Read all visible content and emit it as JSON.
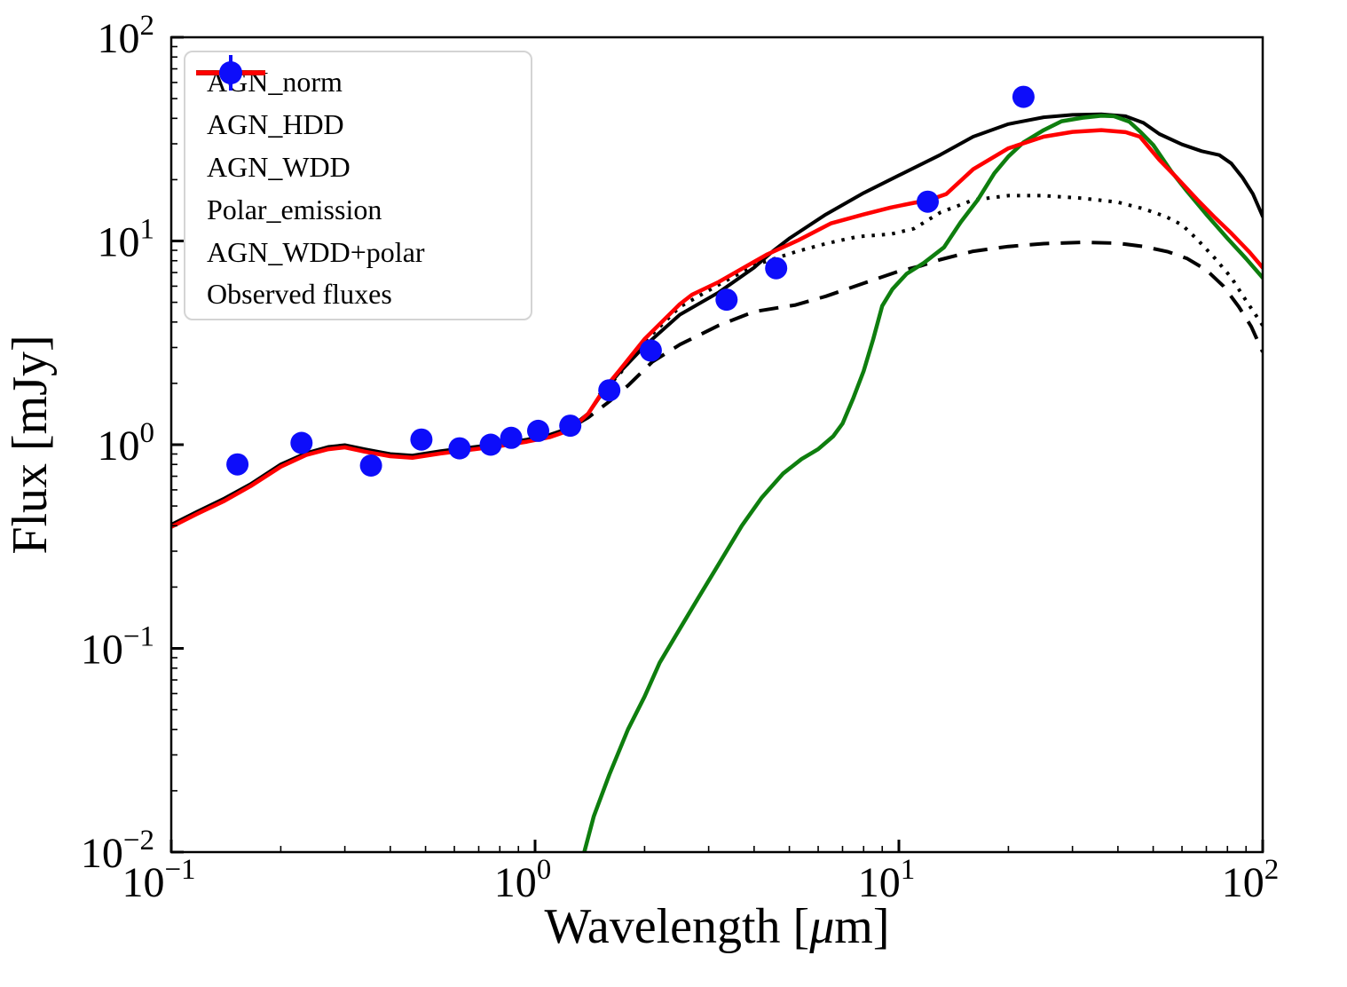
{
  "figure": {
    "background": "#ffffff"
  },
  "axes": {
    "xlabel": {
      "pre": "Wavelength [",
      "mu": "μ",
      "post": "m]"
    },
    "ylabel": "Flux [mJy]",
    "tick_base": "10",
    "x_major_exponents": [
      -1,
      0,
      1,
      2
    ],
    "y_major_exponents": [
      2,
      1,
      0,
      -1,
      -2
    ],
    "x_range_log10": [
      -1,
      2
    ],
    "y_range_log10": [
      -2,
      2
    ],
    "spine_color": "#000000"
  },
  "legend": {
    "border_color": "#d4d4d4",
    "entries": [
      {
        "label": "AGN_norm",
        "color": "#000000",
        "style": "solid"
      },
      {
        "label": "AGN_HDD",
        "color": "#000000",
        "style": "dashed"
      },
      {
        "label": "AGN_WDD",
        "color": "#000000",
        "style": "dotted"
      },
      {
        "label": "Polar_emission",
        "color": "#0e7e0e",
        "style": "solid"
      },
      {
        "label": "AGN_WDD+polar",
        "color": "#ff0000",
        "style": "solid"
      },
      {
        "label": "Observed fluxes",
        "color": "#0d0dfa",
        "style": "marker"
      }
    ]
  },
  "chart_data": {
    "type": "line",
    "title": "",
    "xlabel": "Wavelength [μm]",
    "ylabel": "Flux [mJy]",
    "xscale": "log",
    "yscale": "log",
    "xlim": [
      0.1,
      100
    ],
    "ylim": [
      0.01,
      100
    ],
    "grid": false,
    "legend_position": "upper left",
    "series": [
      {
        "name": "AGN_norm",
        "color": "#000000",
        "linestyle": "solid",
        "linewidth": 4,
        "points": [
          [
            0.1,
            0.405
          ],
          [
            0.118,
            0.47
          ],
          [
            0.14,
            0.545
          ],
          [
            0.165,
            0.64
          ],
          [
            0.2,
            0.8
          ],
          [
            0.235,
            0.91
          ],
          [
            0.27,
            0.975
          ],
          [
            0.3,
            0.995
          ],
          [
            0.34,
            0.95
          ],
          [
            0.4,
            0.9
          ],
          [
            0.46,
            0.885
          ],
          [
            0.55,
            0.93
          ],
          [
            0.65,
            0.965
          ],
          [
            0.8,
            1.01
          ],
          [
            0.95,
            1.06
          ],
          [
            1.1,
            1.12
          ],
          [
            1.25,
            1.21
          ],
          [
            1.4,
            1.42
          ],
          [
            1.55,
            1.85
          ],
          [
            1.7,
            2.25
          ],
          [
            2.0,
            3.05
          ],
          [
            2.5,
            4.35
          ],
          [
            3.2,
            5.6
          ],
          [
            4.0,
            7.4
          ],
          [
            4.5,
            8.9
          ],
          [
            5.0,
            10.3
          ],
          [
            6.3,
            13.5
          ],
          [
            8.0,
            17.2
          ],
          [
            10,
            21
          ],
          [
            13,
            26.5
          ],
          [
            16,
            32.5
          ],
          [
            20,
            37.5
          ],
          [
            25,
            40.5
          ],
          [
            30,
            41.6
          ],
          [
            36,
            41.9
          ],
          [
            42,
            41.0
          ],
          [
            47,
            38
          ],
          [
            52,
            33.5
          ],
          [
            60,
            29.8
          ],
          [
            68,
            27.6
          ],
          [
            76,
            26.4
          ],
          [
            82,
            24
          ],
          [
            88,
            20.5
          ],
          [
            94,
            17
          ],
          [
            100,
            13.2
          ]
        ]
      },
      {
        "name": "AGN_HDD",
        "color": "#000000",
        "linestyle": "dashed",
        "linewidth": 4,
        "points": [
          [
            1.3,
            1.26
          ],
          [
            1.4,
            1.36
          ],
          [
            1.6,
            1.63
          ],
          [
            1.8,
            1.95
          ],
          [
            2.1,
            2.55
          ],
          [
            2.5,
            3.1
          ],
          [
            3.2,
            3.85
          ],
          [
            4.0,
            4.5
          ],
          [
            5.2,
            4.85
          ],
          [
            6.3,
            5.35
          ],
          [
            8.0,
            6.2
          ],
          [
            10,
            7.1
          ],
          [
            11.5,
            7.55
          ],
          [
            13,
            8.1
          ],
          [
            16,
            8.9
          ],
          [
            20,
            9.4
          ],
          [
            25,
            9.7
          ],
          [
            32,
            9.85
          ],
          [
            40,
            9.75
          ],
          [
            47,
            9.4
          ],
          [
            55,
            8.85
          ],
          [
            62,
            8.2
          ],
          [
            70,
            7.2
          ],
          [
            78,
            6.0
          ],
          [
            86,
            4.75
          ],
          [
            93,
            3.8
          ],
          [
            100,
            2.85
          ]
        ]
      },
      {
        "name": "AGN_WDD",
        "color": "#000000",
        "linestyle": "dotted",
        "linewidth": 4,
        "points": [
          [
            1.5,
            1.75
          ],
          [
            1.7,
            2.2
          ],
          [
            2.0,
            3.2
          ],
          [
            2.5,
            4.75
          ],
          [
            3.2,
            6.1
          ],
          [
            4.0,
            7.6
          ],
          [
            5.2,
            8.85
          ],
          [
            6.3,
            9.7
          ],
          [
            7.7,
            10.5
          ],
          [
            9.5,
            10.8
          ],
          [
            11,
            11.5
          ],
          [
            13,
            13.8
          ],
          [
            16,
            15.9
          ],
          [
            20,
            16.7
          ],
          [
            25,
            16.7
          ],
          [
            32,
            16.2
          ],
          [
            40,
            15.5
          ],
          [
            47,
            14.4
          ],
          [
            54,
            13.2
          ],
          [
            60,
            12.0
          ],
          [
            66,
            10.2
          ],
          [
            74,
            8.2
          ],
          [
            82,
            6.6
          ],
          [
            90,
            5.1
          ],
          [
            100,
            3.85
          ]
        ]
      },
      {
        "name": "Polar_emission",
        "color": "#0e7e0e",
        "linestyle": "solid",
        "linewidth": 4.5,
        "points": [
          [
            1.355,
            0.0095
          ],
          [
            1.45,
            0.015
          ],
          [
            1.6,
            0.024
          ],
          [
            1.8,
            0.04
          ],
          [
            2.0,
            0.058
          ],
          [
            2.2,
            0.085
          ],
          [
            2.5,
            0.125
          ],
          [
            2.8,
            0.175
          ],
          [
            3.2,
            0.26
          ],
          [
            3.7,
            0.4
          ],
          [
            4.2,
            0.55
          ],
          [
            4.8,
            0.72
          ],
          [
            5.4,
            0.85
          ],
          [
            6.0,
            0.95
          ],
          [
            6.6,
            1.1
          ],
          [
            7.0,
            1.27
          ],
          [
            7.5,
            1.7
          ],
          [
            8.0,
            2.3
          ],
          [
            8.5,
            3.3
          ],
          [
            9.0,
            4.8
          ],
          [
            9.6,
            5.8
          ],
          [
            10.5,
            6.9
          ],
          [
            11.7,
            7.8
          ],
          [
            13.3,
            9.3
          ],
          [
            14.8,
            12.4
          ],
          [
            16.5,
            16
          ],
          [
            18.3,
            21.5
          ],
          [
            20,
            26
          ],
          [
            22,
            30.5
          ],
          [
            25,
            35
          ],
          [
            28,
            38.7
          ],
          [
            32,
            40.3
          ],
          [
            36,
            41.2
          ],
          [
            39,
            41.0
          ],
          [
            43,
            38.5
          ],
          [
            46,
            34.5
          ],
          [
            50,
            29.6
          ],
          [
            56,
            22
          ],
          [
            62,
            17.5
          ],
          [
            70,
            13.5
          ],
          [
            80,
            10.3
          ],
          [
            90,
            8.2
          ],
          [
            100,
            6.6
          ]
        ]
      },
      {
        "name": "AGN_WDD+polar",
        "color": "#ff0000",
        "linestyle": "solid",
        "linewidth": 4.5,
        "points": [
          [
            0.1,
            0.395
          ],
          [
            0.118,
            0.458
          ],
          [
            0.14,
            0.53
          ],
          [
            0.165,
            0.625
          ],
          [
            0.2,
            0.78
          ],
          [
            0.235,
            0.89
          ],
          [
            0.27,
            0.95
          ],
          [
            0.3,
            0.97
          ],
          [
            0.34,
            0.925
          ],
          [
            0.4,
            0.878
          ],
          [
            0.46,
            0.862
          ],
          [
            0.55,
            0.905
          ],
          [
            0.65,
            0.94
          ],
          [
            0.8,
            0.985
          ],
          [
            0.95,
            1.035
          ],
          [
            1.1,
            1.09
          ],
          [
            1.25,
            1.18
          ],
          [
            1.4,
            1.42
          ],
          [
            1.55,
            1.88
          ],
          [
            1.7,
            2.3
          ],
          [
            2.0,
            3.3
          ],
          [
            2.5,
            4.9
          ],
          [
            2.7,
            5.45
          ],
          [
            3.2,
            6.3
          ],
          [
            4.0,
            7.9
          ],
          [
            4.35,
            8.6
          ],
          [
            5.3,
            10.1
          ],
          [
            6.5,
            12.2
          ],
          [
            8.0,
            13.5
          ],
          [
            9.5,
            14.6
          ],
          [
            11,
            15.4
          ],
          [
            12,
            15.8
          ],
          [
            13.5,
            17
          ],
          [
            16,
            22.5
          ],
          [
            20,
            28.5
          ],
          [
            25,
            32.5
          ],
          [
            30,
            34.3
          ],
          [
            36,
            35.0
          ],
          [
            42,
            34.2
          ],
          [
            46,
            32.5
          ],
          [
            52,
            25
          ],
          [
            58,
            20.5
          ],
          [
            66,
            16
          ],
          [
            74,
            13
          ],
          [
            82,
            10.9
          ],
          [
            92,
            8.8
          ],
          [
            100,
            7.4
          ]
        ]
      }
    ],
    "scatter": {
      "name": "Observed fluxes",
      "color": "#0d0dfa",
      "marker": "circle",
      "marker_radius": 12.5,
      "points": [
        [
          0.152,
          0.8
        ],
        [
          0.228,
          1.02
        ],
        [
          0.354,
          0.79
        ],
        [
          0.487,
          1.06
        ],
        [
          0.62,
          0.96
        ],
        [
          0.755,
          1.0
        ],
        [
          0.86,
          1.08
        ],
        [
          1.02,
          1.17
        ],
        [
          1.25,
          1.24
        ],
        [
          1.6,
          1.85
        ],
        [
          2.08,
          2.9
        ],
        [
          3.36,
          5.15
        ],
        [
          4.6,
          7.35
        ],
        [
          12.0,
          15.6
        ],
        [
          22.0,
          51.0
        ]
      ]
    }
  }
}
